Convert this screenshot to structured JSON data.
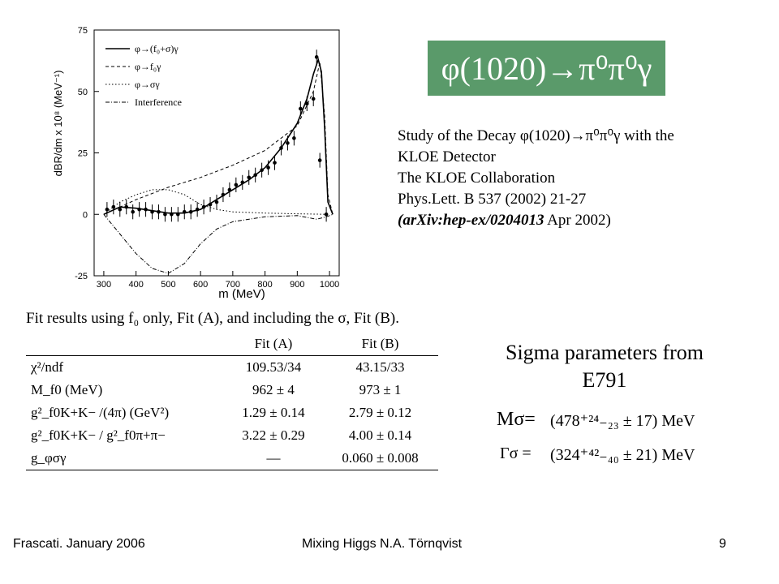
{
  "slide": {
    "title": "φ(1020)→π⁰π⁰γ",
    "reference": {
      "line1": "Study of the Decay φ(1020)→π⁰π⁰γ with the",
      "line2": "KLOE Detector",
      "line3": "The KLOE Collaboration",
      "line4": "Phys.Lett. B 537 (2002) 21-27",
      "line5_italic": "(arXiv:hep-ex/0204013",
      "line5_rest": " Apr 2002)"
    },
    "table": {
      "caption": "Fit results using f₀ only, Fit (A), and including the σ, Fit (B).",
      "headers": [
        "",
        "Fit (A)",
        "Fit (B)"
      ],
      "rows": [
        [
          "χ²/ndf",
          "109.53/34",
          "43.15/33"
        ],
        [
          "M_f0 (MeV)",
          "962 ± 4",
          "973 ± 1"
        ],
        [
          "g²_f0K+K− /(4π) (GeV²)",
          "1.29 ± 0.14",
          "2.79 ± 0.12"
        ],
        [
          "g²_f0K+K− / g²_f0π+π−",
          "3.22 ± 0.29",
          "4.00 ± 0.14"
        ],
        [
          "g_φσγ",
          "—",
          "0.060 ± 0.008"
        ]
      ]
    },
    "sigma": {
      "heading1": "Sigma parameters from",
      "heading2": "E791",
      "m_label": "Mσ=",
      "m_value": "(478⁺²⁴₋₂₃ ± 17) MeV",
      "gamma_label": "Γσ =",
      "gamma_value": "(324⁺⁴²₋₄₀ ± 21) MeV"
    },
    "footer": {
      "left": "Frascati.  January 2006",
      "center": "Mixing Higgs       N.A. Törnqvist",
      "page": "9"
    }
  },
  "chart_data": {
    "type": "line",
    "xlabel": "m (MeV)",
    "ylabel": "dBR/dm x 10⁸ (MeV⁻¹)",
    "xlim": [
      270,
      1030
    ],
    "ylim": [
      -25,
      75
    ],
    "xticks": [
      300,
      400,
      500,
      600,
      700,
      800,
      900,
      1000
    ],
    "yticks": [
      -25,
      0,
      25,
      50,
      75
    ],
    "legend": [
      "φ→(f₀+σ)γ",
      "φ→f₀γ",
      "φ→σγ",
      "Interference"
    ],
    "series": [
      {
        "name": "φ→(f₀+σ)γ",
        "style": "solid",
        "x": [
          300,
          350,
          400,
          450,
          500,
          550,
          600,
          650,
          700,
          750,
          800,
          850,
          900,
          930,
          950,
          965,
          975,
          985,
          995,
          1010
        ],
        "y": [
          0,
          3,
          2.5,
          1.5,
          0.5,
          0.5,
          2,
          6,
          10,
          14,
          19,
          27,
          37,
          47,
          57,
          63,
          58,
          35,
          5,
          0
        ]
      },
      {
        "name": "φ→f₀γ",
        "style": "dashed",
        "x": [
          300,
          400,
          500,
          600,
          700,
          800,
          900,
          950,
          970,
          985,
          995,
          1010
        ],
        "y": [
          0,
          6,
          11,
          15,
          20,
          26,
          36,
          50,
          62,
          40,
          8,
          0
        ]
      },
      {
        "name": "φ→σγ",
        "style": "dotted",
        "x": [
          300,
          350,
          400,
          450,
          500,
          550,
          600,
          650,
          700,
          800,
          900,
          1000
        ],
        "y": [
          0,
          5,
          8,
          10,
          10,
          8,
          4,
          2,
          1,
          0.5,
          0.2,
          0
        ]
      },
      {
        "name": "Interference",
        "style": "dashdot",
        "x": [
          300,
          350,
          400,
          450,
          500,
          550,
          600,
          650,
          700,
          800,
          900,
          960,
          990,
          1010
        ],
        "y": [
          0,
          -8,
          -16,
          -22,
          -24,
          -20,
          -12,
          -6,
          -3,
          -1,
          -0.5,
          -2,
          -1,
          0
        ]
      }
    ],
    "points": {
      "x": [
        310,
        330,
        350,
        370,
        390,
        410,
        430,
        450,
        470,
        490,
        510,
        530,
        550,
        570,
        590,
        610,
        630,
        650,
        670,
        690,
        710,
        730,
        750,
        770,
        790,
        810,
        830,
        850,
        870,
        890,
        910,
        930,
        950,
        960,
        970,
        990
      ],
      "y": [
        2,
        3,
        2,
        3,
        1,
        2,
        2,
        1,
        1,
        0,
        0,
        0,
        1,
        1,
        2,
        3,
        4,
        5,
        8,
        10,
        12,
        13,
        15,
        16,
        18,
        19,
        21,
        27,
        29,
        31,
        43,
        45,
        47,
        64,
        22,
        0
      ]
    }
  }
}
